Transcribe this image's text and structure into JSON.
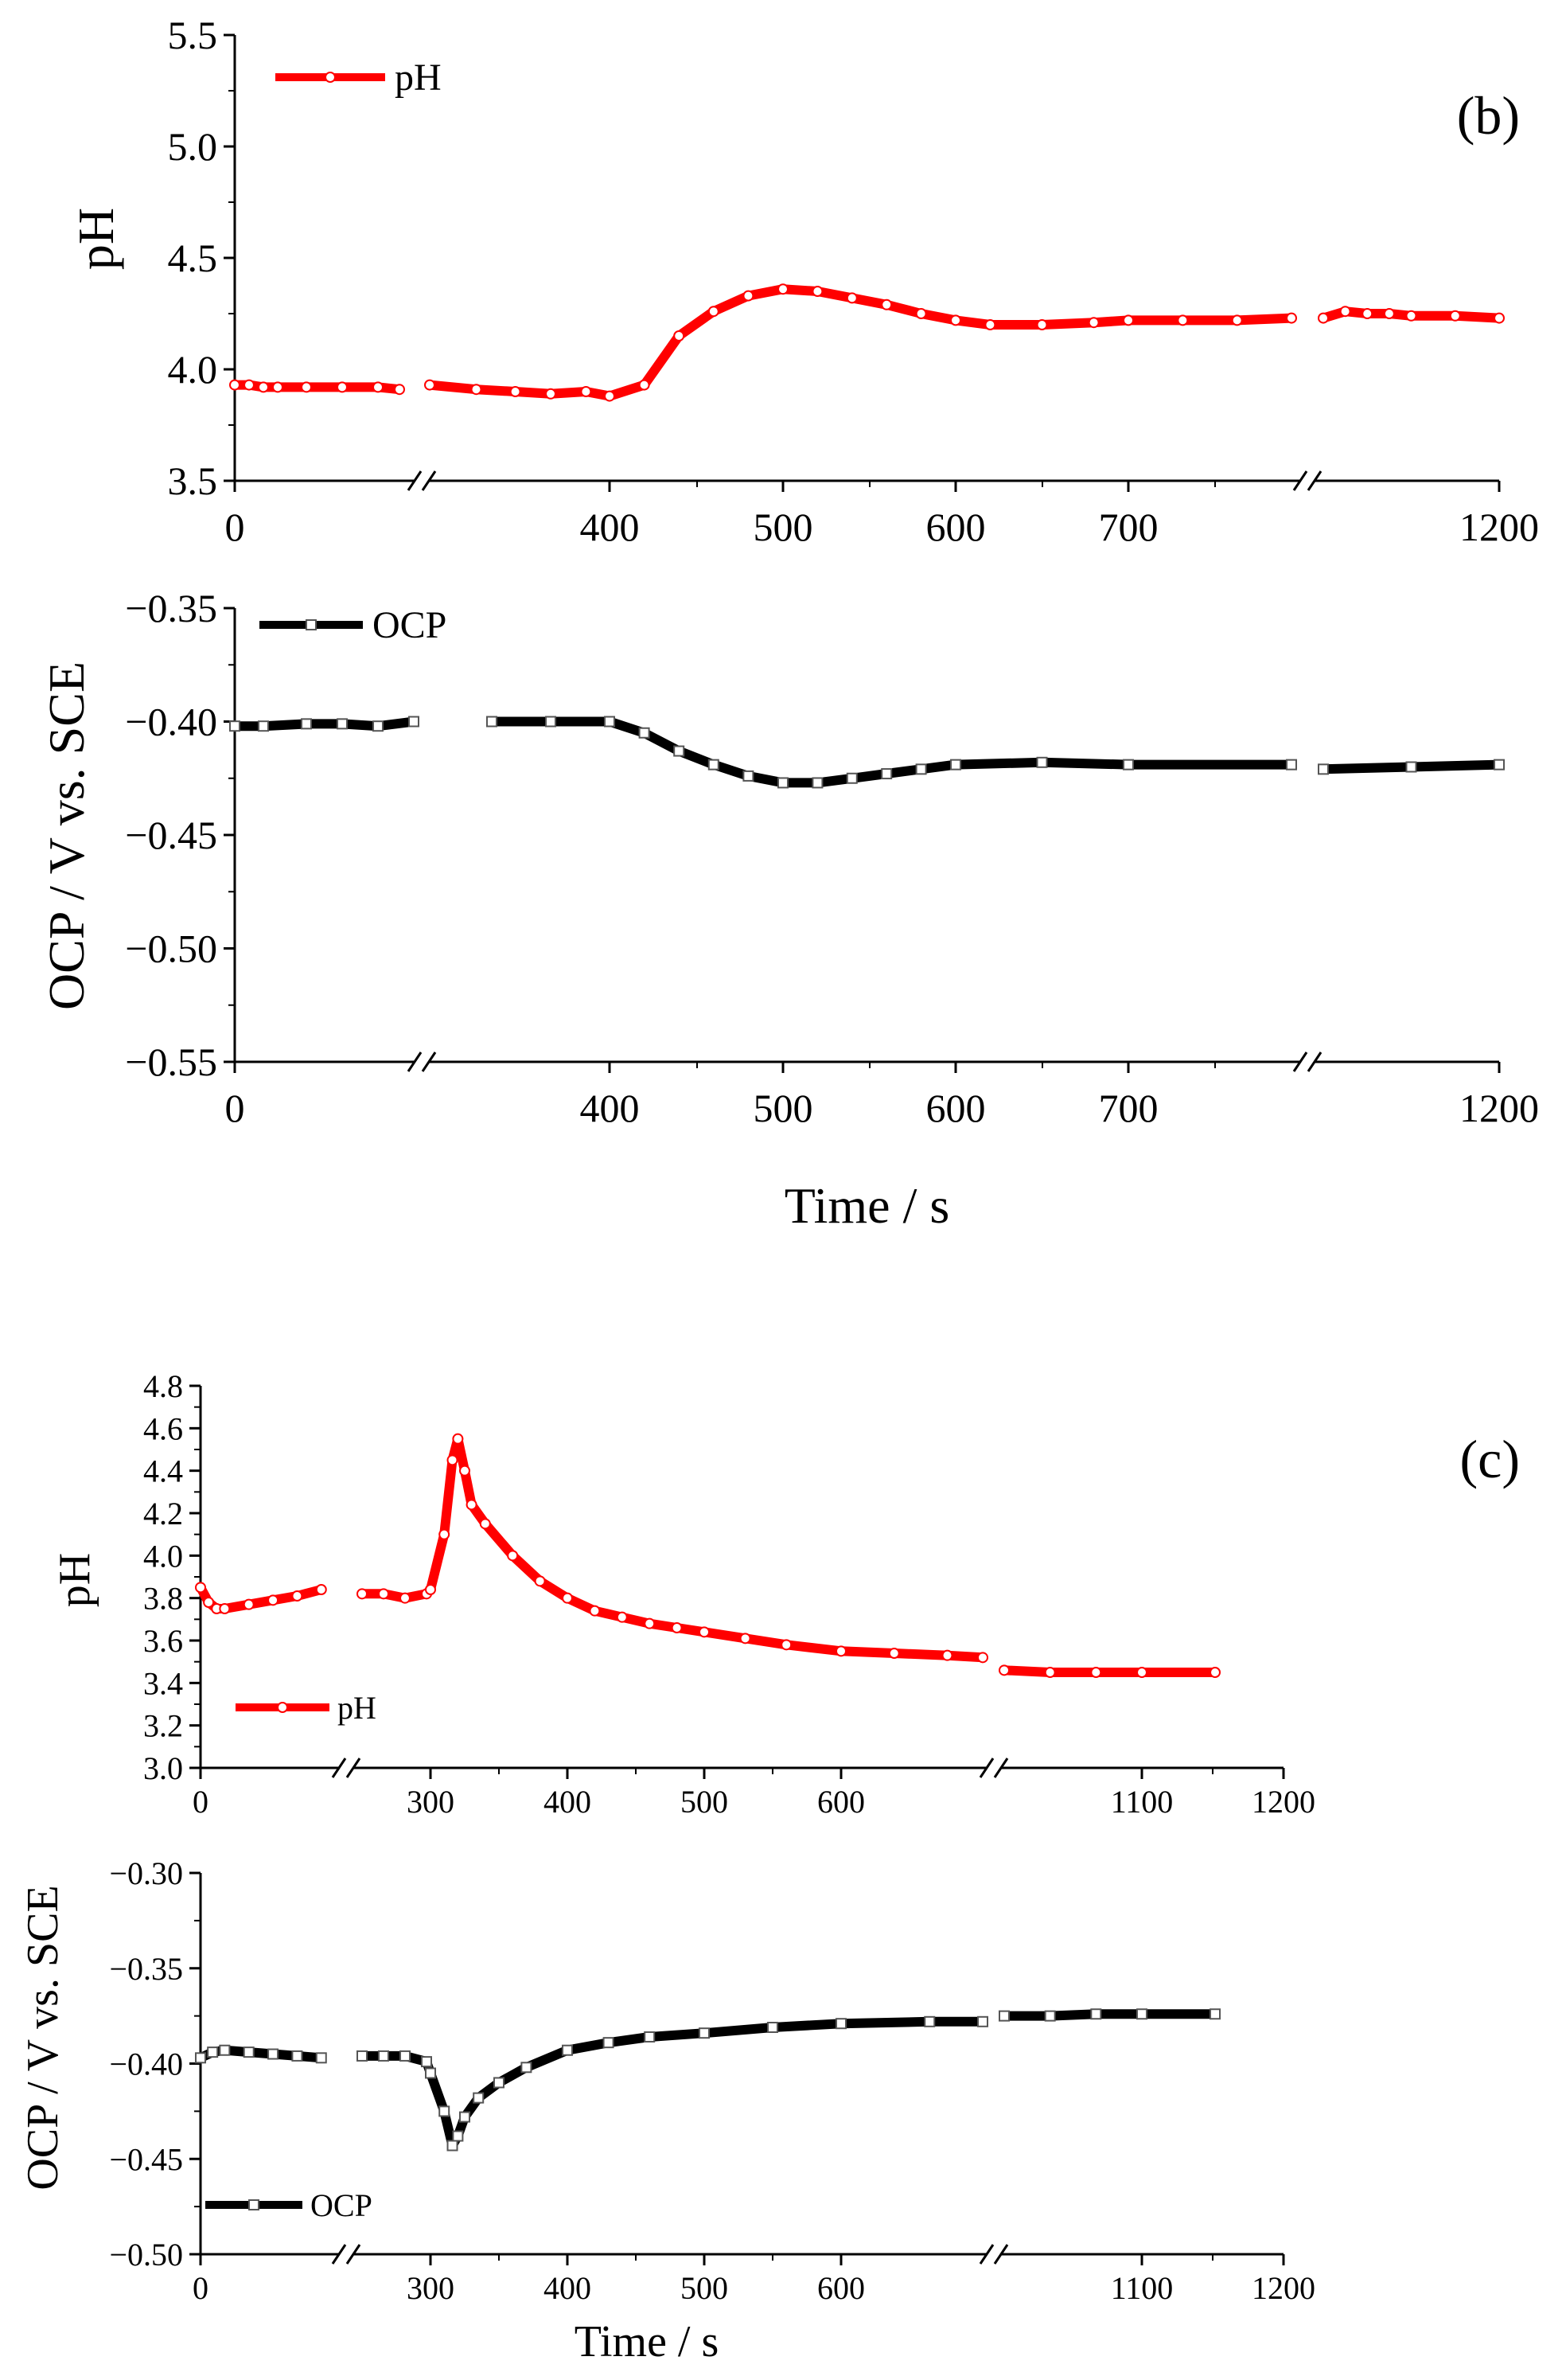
{
  "colors": {
    "ph": "#ff0000",
    "ocp": "#000000",
    "axis": "#000000"
  },
  "chart_data": [
    {
      "type": "line",
      "panel_label": "(b)",
      "title": "",
      "xlabel": "",
      "ylabel": "pH",
      "ylim": [
        3.5,
        5.5
      ],
      "y_ticks": [
        "3.5",
        "4.0",
        "4.5",
        "5.0",
        "5.5"
      ],
      "x_ticks": [
        "0",
        "400",
        "500",
        "600",
        "700",
        "1200"
      ],
      "legend": "pH",
      "series": [
        {
          "name": "pH",
          "x": [
            0,
            20,
            40,
            60,
            100,
            150,
            200,
            230,
            260,
            290,
            320,
            350,
            380,
            400,
            420,
            440,
            460,
            480,
            500,
            520,
            540,
            560,
            580,
            600,
            620,
            650,
            680,
            700,
            730,
            760,
            790,
            800,
            850,
            900,
            950,
            1000,
            1100,
            1200
          ],
          "y": [
            3.93,
            3.93,
            3.92,
            3.92,
            3.92,
            3.92,
            3.92,
            3.91,
            3.93,
            3.91,
            3.9,
            3.89,
            3.9,
            3.88,
            3.93,
            4.15,
            4.26,
            4.33,
            4.36,
            4.35,
            4.32,
            4.29,
            4.25,
            4.22,
            4.2,
            4.2,
            4.21,
            4.22,
            4.22,
            4.22,
            4.23,
            4.23,
            4.26,
            4.25,
            4.25,
            4.24,
            4.24,
            4.23
          ]
        }
      ]
    },
    {
      "type": "line",
      "panel_label": "",
      "title": "",
      "xlabel": "Time / s",
      "ylabel": "OCP / V vs. SCE",
      "ylim": [
        -0.55,
        -0.35
      ],
      "y_ticks": [
        "−0.55",
        "−0.50",
        "−0.45",
        "−0.40",
        "−0.35"
      ],
      "x_ticks": [
        "0",
        "400",
        "500",
        "600",
        "700",
        "1200"
      ],
      "legend": "OCP",
      "series": [
        {
          "name": "OCP",
          "x": [
            0,
            40,
            100,
            150,
            200,
            250,
            300,
            350,
            400,
            420,
            440,
            460,
            480,
            500,
            520,
            540,
            560,
            580,
            600,
            650,
            700,
            790,
            800,
            1000,
            1200
          ],
          "y": [
            -0.402,
            -0.402,
            -0.401,
            -0.401,
            -0.402,
            -0.4,
            -0.4,
            -0.4,
            -0.4,
            -0.405,
            -0.413,
            -0.419,
            -0.424,
            -0.427,
            -0.427,
            -0.425,
            -0.423,
            -0.421,
            -0.419,
            -0.418,
            -0.419,
            -0.419,
            -0.421,
            -0.42,
            -0.419
          ]
        }
      ]
    },
    {
      "type": "line",
      "panel_label": "(c)",
      "title": "",
      "xlabel": "",
      "ylabel": "pH",
      "ylim": [
        3.0,
        4.8
      ],
      "y_ticks": [
        "3.0",
        "3.2",
        "3.4",
        "3.6",
        "3.8",
        "4.0",
        "4.2",
        "4.4",
        "4.6",
        "4.8"
      ],
      "x_ticks": [
        "0",
        "300",
        "400",
        "500",
        "600",
        "1100",
        "1200"
      ],
      "legend": "pH",
      "series": [
        {
          "name": "pH",
          "x": [
            0,
            10,
            20,
            30,
            60,
            90,
            120,
            150,
            200,
            230,
            260,
            290,
            300,
            310,
            316,
            320,
            325,
            330,
            340,
            360,
            380,
            400,
            420,
            440,
            460,
            480,
            500,
            530,
            560,
            600,
            630,
            660,
            680,
            950,
            1000,
            1050,
            1100,
            1150
          ],
          "y": [
            3.85,
            3.78,
            3.75,
            3.75,
            3.77,
            3.79,
            3.81,
            3.84,
            3.82,
            3.82,
            3.8,
            3.82,
            3.84,
            4.1,
            4.45,
            4.55,
            4.4,
            4.24,
            4.15,
            4.0,
            3.88,
            3.8,
            3.74,
            3.71,
            3.68,
            3.66,
            3.64,
            3.61,
            3.58,
            3.55,
            3.54,
            3.53,
            3.52,
            3.46,
            3.45,
            3.45,
            3.45,
            3.45
          ]
        }
      ]
    },
    {
      "type": "line",
      "panel_label": "",
      "title": "",
      "xlabel": "Time / s",
      "ylabel": "OCP / V vs. SCE",
      "ylim": [
        -0.5,
        -0.3
      ],
      "y_ticks": [
        "−0.50",
        "−0.45",
        "−0.40",
        "−0.35",
        "−0.30"
      ],
      "x_ticks": [
        "0",
        "300",
        "400",
        "500",
        "600",
        "1100",
        "1200"
      ],
      "legend": "OCP",
      "series": [
        {
          "name": "OCP",
          "x": [
            0,
            15,
            30,
            60,
            90,
            120,
            150,
            200,
            230,
            260,
            290,
            300,
            310,
            316,
            320,
            325,
            335,
            350,
            370,
            400,
            430,
            460,
            500,
            550,
            600,
            650,
            680,
            950,
            1000,
            1050,
            1100,
            1150
          ],
          "y": [
            -0.397,
            -0.394,
            -0.393,
            -0.394,
            -0.395,
            -0.396,
            -0.397,
            -0.396,
            -0.396,
            -0.396,
            -0.399,
            -0.405,
            -0.425,
            -0.443,
            -0.438,
            -0.428,
            -0.418,
            -0.41,
            -0.402,
            -0.393,
            -0.389,
            -0.386,
            -0.384,
            -0.381,
            -0.379,
            -0.378,
            -0.378,
            -0.375,
            -0.375,
            -0.374,
            -0.374,
            -0.374
          ]
        }
      ]
    }
  ]
}
